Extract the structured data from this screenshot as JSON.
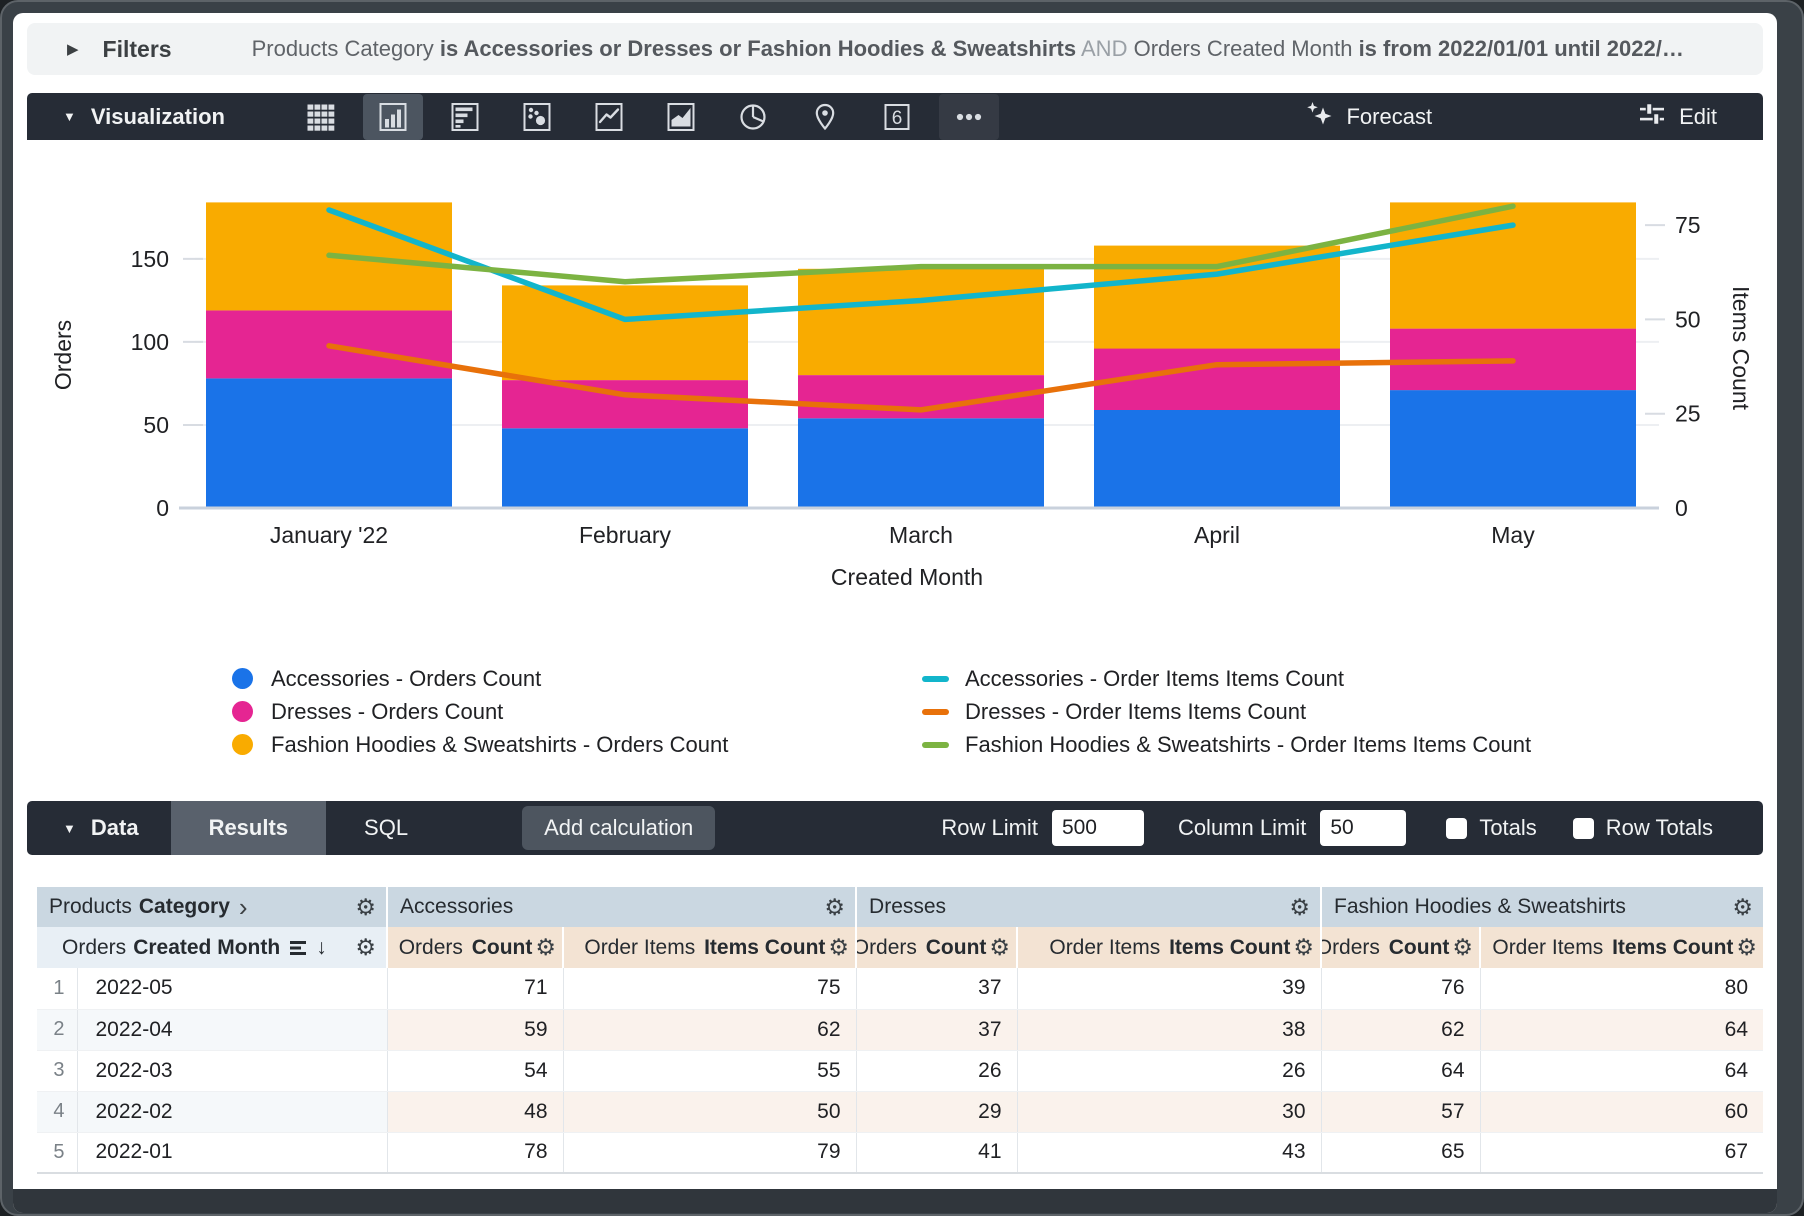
{
  "filters": {
    "toggle_label": "Filters",
    "segments": [
      {
        "text": "Products Category ",
        "style": "regular"
      },
      {
        "text": "is Accessories or Dresses or Fashion Hoodies & Sweatshirts",
        "style": "bold"
      },
      {
        "text": " AND ",
        "style": "conjunction"
      },
      {
        "text": "Orders Created Month ",
        "style": "regular"
      },
      {
        "text": "is from 2022/01/01 until 2022/…",
        "style": "bold"
      }
    ]
  },
  "viz_toolbar": {
    "title": "Visualization",
    "icons": [
      {
        "name": "table",
        "selected": false
      },
      {
        "name": "column-chart",
        "selected": true
      },
      {
        "name": "bar-chart",
        "selected": false
      },
      {
        "name": "scatter",
        "selected": false
      },
      {
        "name": "line-chart",
        "selected": false
      },
      {
        "name": "area-chart",
        "selected": false
      },
      {
        "name": "pie-chart",
        "selected": false
      },
      {
        "name": "map-pin",
        "selected": false
      },
      {
        "name": "single-value",
        "selected": false,
        "glyph": "6"
      },
      {
        "name": "more",
        "selected": false
      }
    ],
    "forecast_label": "Forecast",
    "edit_label": "Edit"
  },
  "chart_data": {
    "type": "combo-stacked-bar-line",
    "x_categories": [
      "January '22",
      "February",
      "March",
      "April",
      "May"
    ],
    "x_axis_label": "Created Month",
    "left_axis": {
      "title": "Orders",
      "ticks": [
        0,
        50,
        100,
        150
      ],
      "max": 193
    },
    "right_axis": {
      "title": "Items Count",
      "ticks": [
        0,
        25,
        50,
        75
      ],
      "max": 97
    },
    "bar_series": [
      {
        "name": "Accessories - Orders Count",
        "color": "#1A73E8",
        "values": [
          78,
          48,
          54,
          59,
          71
        ]
      },
      {
        "name": "Dresses - Orders Count",
        "color": "#E52592",
        "values": [
          41,
          29,
          26,
          37,
          37
        ]
      },
      {
        "name": "Fashion Hoodies & Sweatshirts - Orders Count",
        "color": "#F9AB00",
        "values": [
          65,
          57,
          64,
          62,
          76
        ]
      }
    ],
    "line_series": [
      {
        "name": "Accessories - Order Items Items Count",
        "color": "#12B5CB",
        "values": [
          79,
          50,
          55,
          62,
          75
        ]
      },
      {
        "name": "Dresses - Order Items Items Count",
        "color": "#E8710A",
        "values": [
          43,
          30,
          26,
          38,
          39
        ]
      },
      {
        "name": "Fashion Hoodies & Sweatshirts - Order Items Items Count",
        "color": "#7CB342",
        "values": [
          67,
          60,
          64,
          64,
          80
        ]
      }
    ],
    "legend_position": "bottom",
    "grid": true
  },
  "data_bar": {
    "title": "Data",
    "tabs": [
      {
        "label": "Results",
        "active": true
      },
      {
        "label": "SQL",
        "active": false
      }
    ],
    "add_calculation_label": "Add calculation",
    "row_limit_label": "Row Limit",
    "row_limit_value": "500",
    "column_limit_label": "Column Limit",
    "column_limit_value": "50",
    "totals_label": "Totals",
    "totals_checked": false,
    "row_totals_label": "Row Totals",
    "row_totals_checked": false
  },
  "table": {
    "pivot_headers": [
      {
        "regular": "Products",
        "bold": "Category",
        "chevron": "›"
      },
      {
        "label": "Accessories"
      },
      {
        "label": "Dresses"
      },
      {
        "label": "Fashion Hoodies & Sweatshirts"
      }
    ],
    "field_headers": {
      "dimension": {
        "regular": "Orders",
        "bold": "Created Month",
        "sort_arrow": "↓"
      },
      "measures": [
        {
          "regular": "Orders",
          "bold": "Count"
        },
        {
          "regular": "Order Items",
          "bold": "Items Count"
        },
        {
          "regular": "Orders",
          "bold": "Count"
        },
        {
          "regular": "Order Items",
          "bold": "Items Count"
        },
        {
          "regular": "Orders",
          "bold": "Count"
        },
        {
          "regular": "Order Items",
          "bold": "Items Count"
        }
      ]
    },
    "rows": [
      {
        "num": "1",
        "dimension": "2022-05",
        "values": [
          "71",
          "75",
          "37",
          "39",
          "76",
          "80"
        ]
      },
      {
        "num": "2",
        "dimension": "2022-04",
        "values": [
          "59",
          "62",
          "37",
          "38",
          "62",
          "64"
        ]
      },
      {
        "num": "3",
        "dimension": "2022-03",
        "values": [
          "54",
          "55",
          "26",
          "26",
          "64",
          "64"
        ]
      },
      {
        "num": "4",
        "dimension": "2022-02",
        "values": [
          "48",
          "50",
          "29",
          "30",
          "57",
          "60"
        ]
      },
      {
        "num": "5",
        "dimension": "2022-01",
        "values": [
          "78",
          "79",
          "41",
          "43",
          "65",
          "67"
        ]
      }
    ]
  }
}
